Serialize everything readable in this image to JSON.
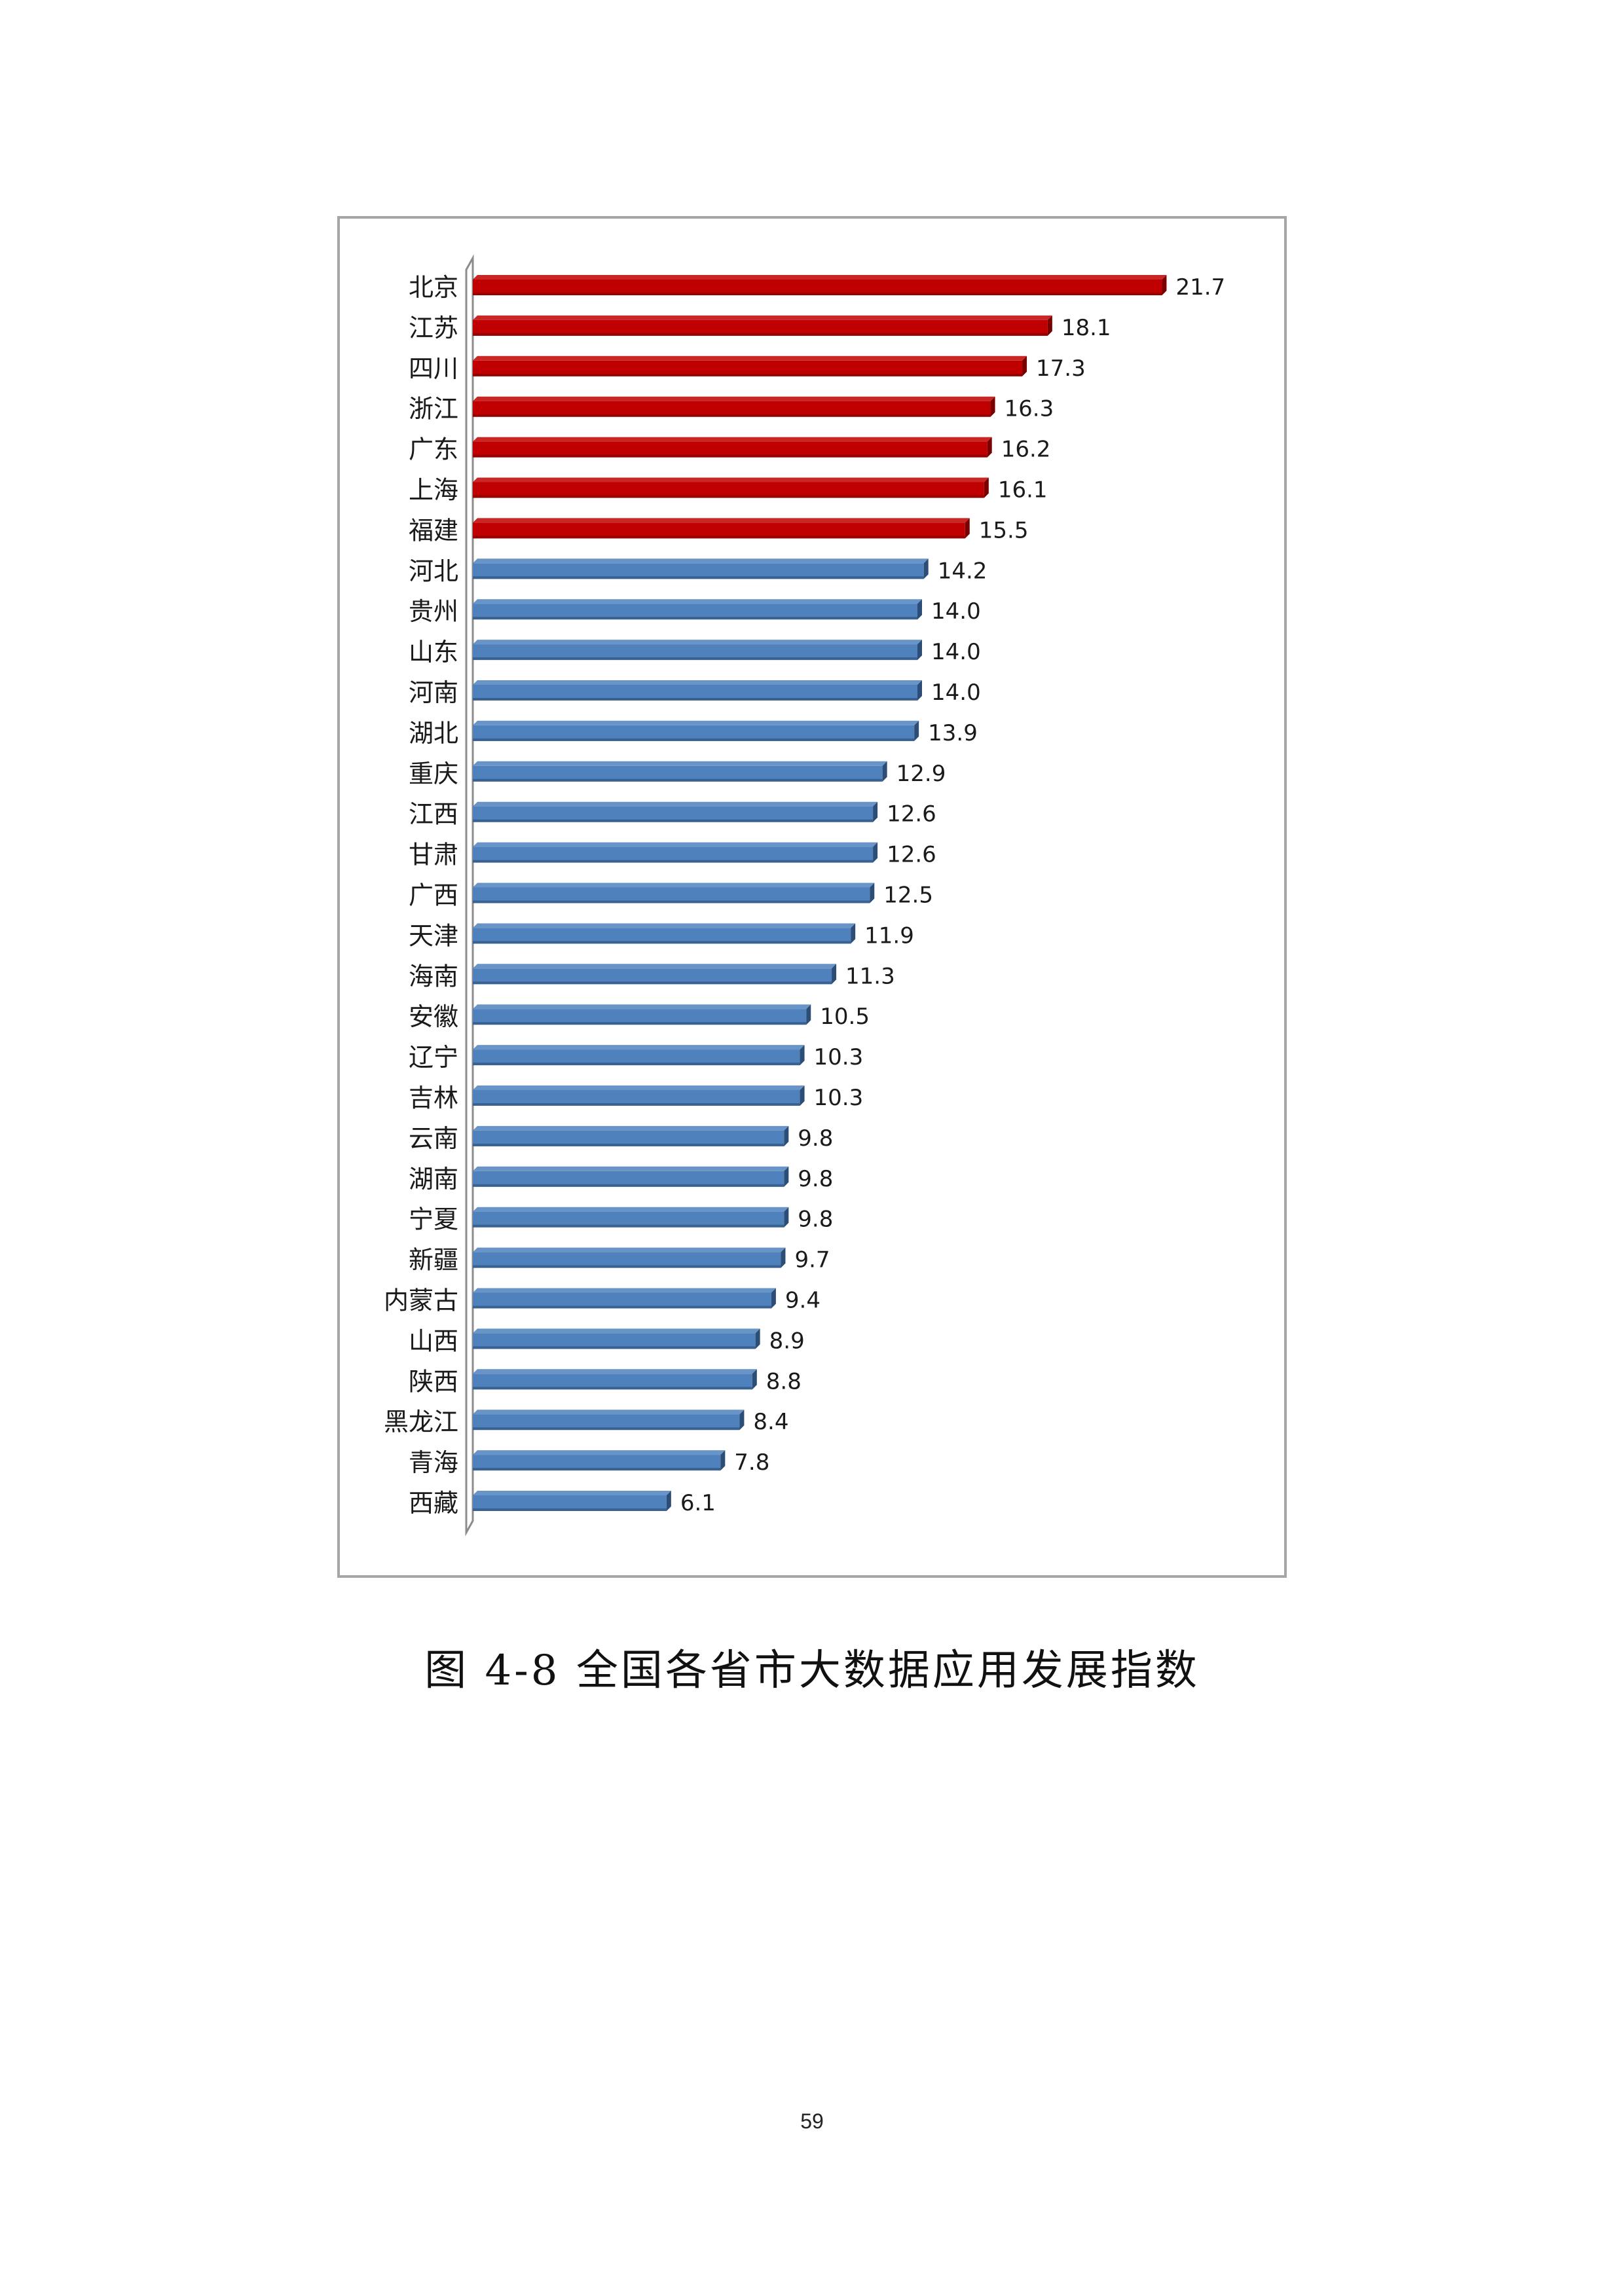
{
  "caption": "图 4-8 全国各省市大数据应用发展指数",
  "page_number": "59",
  "colors": {
    "highlight": "#c00000",
    "highlight_dark": "#7a0000",
    "normal": "#4f81bd",
    "normal_dark": "#2c4d75"
  },
  "chart_data": {
    "type": "bar",
    "orientation": "horizontal",
    "title": "",
    "xlabel": "",
    "ylabel": "",
    "xlim": [
      0,
      25
    ],
    "grid": false,
    "legend": "none",
    "highlight_count": 7,
    "categories": [
      "北京",
      "江苏",
      "四川",
      "浙江",
      "广东",
      "上海",
      "福建",
      "河北",
      "贵州",
      "山东",
      "河南",
      "湖北",
      "重庆",
      "江西",
      "甘肃",
      "广西",
      "天津",
      "海南",
      "安徽",
      "辽宁",
      "吉林",
      "云南",
      "湖南",
      "宁夏",
      "新疆",
      "内蒙古",
      "山西",
      "陕西",
      "黑龙江",
      "青海",
      "西藏"
    ],
    "values": [
      21.7,
      18.1,
      17.3,
      16.3,
      16.2,
      16.1,
      15.5,
      14.2,
      14.0,
      14.0,
      14.0,
      13.9,
      12.9,
      12.6,
      12.6,
      12.5,
      11.9,
      11.3,
      10.5,
      10.3,
      10.3,
      9.8,
      9.8,
      9.8,
      9.7,
      9.4,
      8.9,
      8.8,
      8.4,
      7.8,
      6.1
    ],
    "value_labels": [
      "21.7",
      "18.1",
      "17.3",
      "16.3",
      "16.2",
      "16.1",
      "15.5",
      "14.2",
      "14.0",
      "14.0",
      "14.0",
      "13.9",
      "12.9",
      "12.6",
      "12.6",
      "12.5",
      "11.9",
      "11.3",
      "10.5",
      "10.3",
      "10.3",
      "9.8",
      "9.8",
      "9.8",
      "9.7",
      "9.4",
      "8.9",
      "8.8",
      "8.4",
      "7.8",
      "6.1"
    ]
  }
}
